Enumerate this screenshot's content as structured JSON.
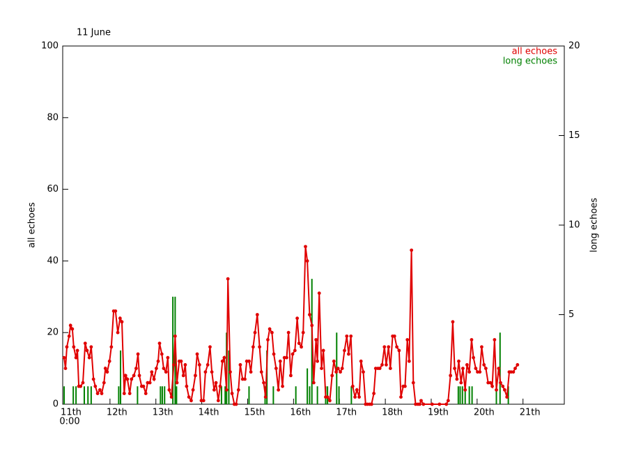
{
  "chart_data": {
    "type": "line",
    "title": "11 June",
    "y_label": "all echoes",
    "y2_label": "long echoes",
    "x_start_label": "0:00",
    "xlim": [
      0,
      10.9
    ],
    "xticks": [
      {
        "value": 0,
        "label": "11th"
      },
      {
        "value": 1,
        "label": "12th"
      },
      {
        "value": 2,
        "label": "13th"
      },
      {
        "value": 3,
        "label": "14th"
      },
      {
        "value": 4,
        "label": "15th"
      },
      {
        "value": 5,
        "label": "16th"
      },
      {
        "value": 6,
        "label": "17th"
      },
      {
        "value": 7,
        "label": "18th"
      },
      {
        "value": 8,
        "label": "19th"
      },
      {
        "value": 9,
        "label": "20th"
      },
      {
        "value": 10,
        "label": "21th"
      }
    ],
    "ylim": [
      0,
      100
    ],
    "yticks": [
      0,
      20,
      40,
      60,
      80,
      100
    ],
    "y2lim": [
      0,
      20
    ],
    "y2ticks": [
      5,
      10,
      15,
      20
    ],
    "legend": "top-right",
    "series": [
      {
        "name": "all echoes",
        "color": "#e00000",
        "style": "line-markers",
        "x": [
          0.0,
          0.03,
          0.06,
          0.11,
          0.14,
          0.18,
          0.21,
          0.26,
          0.29,
          0.32,
          0.36,
          0.41,
          0.46,
          0.5,
          0.55,
          0.59,
          0.64,
          0.68,
          0.73,
          0.78,
          0.82,
          0.87,
          0.9,
          0.94,
          0.99,
          1.03,
          1.08,
          1.12,
          1.17,
          1.22,
          1.26,
          1.31,
          1.34,
          1.38,
          1.43,
          1.47,
          1.52,
          1.57,
          1.61,
          1.64,
          1.69,
          1.73,
          1.78,
          1.82,
          1.87,
          1.91,
          1.96,
          2.01,
          2.05,
          2.08,
          2.13,
          2.17,
          2.22,
          2.26,
          2.29,
          2.34,
          2.39,
          2.42,
          2.46,
          2.51,
          2.55,
          2.6,
          2.64,
          2.67,
          2.72,
          2.77,
          2.81,
          2.86,
          2.9,
          2.95,
          2.99,
          3.04,
          3.08,
          3.13,
          3.18,
          3.22,
          3.27,
          3.31,
          3.36,
          3.4,
          3.45,
          3.49,
          3.54,
          3.57,
          3.62,
          3.66,
          3.71,
          3.75,
          3.8,
          3.84,
          3.89,
          3.94,
          3.98,
          4.03,
          4.07,
          4.12,
          4.16,
          4.21,
          4.26,
          4.3,
          4.35,
          4.39,
          4.44,
          4.48,
          4.53,
          4.57,
          4.62,
          4.67,
          4.71,
          4.76,
          4.8,
          4.85,
          4.89,
          4.94,
          4.98,
          5.03,
          5.08,
          5.12,
          5.17,
          5.21,
          5.26,
          5.3,
          5.35,
          5.4,
          5.44,
          5.49,
          5.52,
          5.56,
          5.61,
          5.65,
          5.7,
          5.74,
          5.79,
          5.84,
          5.88,
          5.93,
          5.97,
          6.02,
          6.06,
          6.11,
          6.16,
          6.2,
          6.25,
          6.29,
          6.34,
          6.38,
          6.43,
          6.47,
          6.52,
          6.57,
          6.61,
          6.66,
          6.7,
          6.75,
          6.79,
          6.84,
          6.88,
          6.93,
          6.98,
          7.02,
          7.07,
          7.11,
          7.16,
          7.2,
          7.25,
          7.3,
          7.34,
          7.39,
          7.43,
          7.48,
          7.52,
          7.57,
          7.61,
          7.66,
          7.71,
          7.75,
          7.78,
          7.83,
          8.02,
          8.18,
          8.33,
          8.37,
          8.42,
          8.47,
          8.51,
          8.56,
          8.6,
          8.65,
          8.69,
          8.74,
          8.78,
          8.83,
          8.88,
          8.92,
          8.97,
          9.01,
          9.06,
          9.1,
          9.15,
          9.19,
          9.24,
          9.29,
          9.33,
          9.38,
          9.42,
          9.47,
          9.51,
          9.56,
          9.6,
          9.65,
          9.7,
          9.74,
          9.79,
          9.83,
          9.88
        ],
        "values": [
          13,
          10,
          16,
          19,
          22,
          21,
          16,
          13,
          15,
          5,
          5,
          6,
          17,
          15,
          13,
          16,
          7,
          5,
          3,
          4,
          3,
          6,
          10,
          9,
          12,
          16,
          26,
          26,
          20,
          24,
          23,
          3,
          8,
          7,
          3,
          7,
          8,
          10,
          14,
          8,
          5,
          5,
          3,
          6,
          6,
          9,
          7,
          10,
          12,
          17,
          14,
          10,
          9,
          13,
          4,
          2,
          11,
          19,
          6,
          12,
          12,
          8,
          11,
          5,
          2,
          1,
          4,
          8,
          14,
          11,
          1,
          1,
          9,
          11,
          16,
          9,
          4,
          6,
          1,
          5,
          12,
          13,
          4,
          35,
          9,
          3,
          0,
          0,
          4,
          11,
          7,
          7,
          12,
          12,
          9,
          16,
          20,
          25,
          16,
          9,
          6,
          2,
          18,
          21,
          20,
          14,
          10,
          4,
          12,
          5,
          13,
          13,
          20,
          8,
          14,
          15,
          24,
          17,
          16,
          20,
          44,
          40,
          25,
          22,
          6,
          18,
          12,
          31,
          10,
          15,
          2,
          2,
          1,
          8,
          12,
          9,
          10,
          9,
          10,
          15,
          19,
          14,
          19,
          5,
          2,
          4,
          2,
          12,
          9,
          0,
          0,
          0,
          0,
          3,
          10,
          10,
          10,
          11,
          16,
          11,
          16,
          10,
          19,
          19,
          16,
          15,
          2,
          5,
          5,
          18,
          12,
          43,
          6,
          0,
          0,
          0,
          1,
          0,
          0,
          0,
          0,
          1,
          8,
          23,
          10,
          7,
          12,
          6,
          10,
          4,
          11,
          9,
          18,
          13,
          10,
          9,
          9,
          16,
          11,
          10,
          6,
          6,
          5,
          18,
          4,
          10,
          6,
          5,
          4,
          2,
          9,
          9,
          9,
          10,
          11
        ]
      },
      {
        "name": "long echoes",
        "color": "#008000",
        "style": "bars",
        "axis": "y2",
        "x": [
          0.0,
          0.2,
          0.26,
          0.44,
          0.52,
          0.59,
          1.19,
          1.23,
          1.6,
          2.1,
          2.14,
          2.19,
          2.37,
          2.42,
          2.45,
          3.43,
          3.51,
          3.54,
          3.59,
          4.03,
          4.38,
          4.42,
          4.56,
          5.05,
          5.3,
          5.35,
          5.4,
          5.52,
          5.7,
          5.74,
          5.94,
          5.99,
          6.26,
          8.59,
          8.63,
          8.68,
          8.74,
          8.83,
          8.89,
          9.42,
          9.5,
          9.68
        ],
        "values": [
          1,
          1,
          1,
          1,
          1,
          1,
          1,
          3,
          1,
          1,
          1,
          1,
          6,
          6,
          1,
          1,
          1,
          4,
          3,
          1,
          1,
          3,
          1,
          1,
          2,
          1,
          7,
          1,
          1,
          1,
          4,
          1,
          1,
          1,
          1,
          1,
          1,
          1,
          1,
          1,
          4,
          1
        ]
      }
    ]
  }
}
